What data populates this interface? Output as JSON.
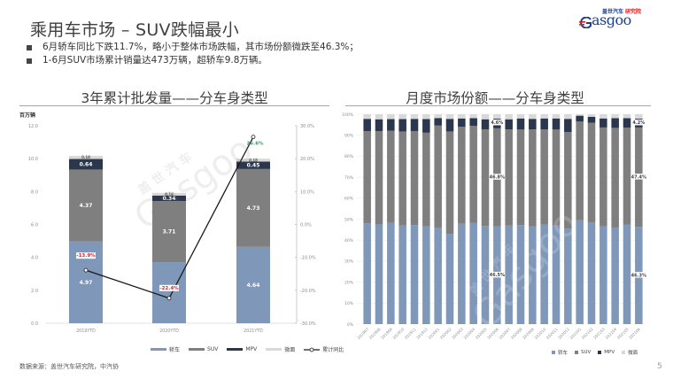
{
  "header": {
    "title": "乘用车市场 – SUV跌幅最小",
    "logo": {
      "top_left": "盖世汽车",
      "top_right": "研究院",
      "word": "asgoo"
    }
  },
  "bullets": [
    "6月轿车同比下跌11.7%，略小于整体市场跌幅，其市场份额微跌至46.3%；",
    "1-6月SUV市场累计销量达473万辆，超轿车9.8万辆。"
  ],
  "colors": {
    "sedan": "#7f97b8",
    "suv": "#7f7f7f",
    "mpv": "#2b374c",
    "crossover": "#d9d9d9",
    "line": "#1a1a1a",
    "negative_label": "#e0202f",
    "positive_label": "#21a366"
  },
  "left_chart": {
    "title": "3年累计批发量——分车身类型",
    "unit": "百万辆"
  },
  "right_chart": {
    "title": "月度市场份额——分车身类型"
  },
  "legend": {
    "sedan": "轿车",
    "suv": "SUV",
    "mpv": "MPV",
    "crossover": "微面",
    "yoy": "累计同比"
  },
  "chart_data": [
    {
      "type": "bar",
      "stacked": true,
      "title": "3年累计批发量——分车身类型",
      "ylabel": "百万辆",
      "ylim": [
        0,
        12
      ],
      "yticks": [
        "0.0",
        "2.0",
        "4.0",
        "6.0",
        "8.0",
        "10.0",
        "12.0"
      ],
      "y2lim": [
        -30,
        30
      ],
      "y2ticks": [
        "-30.0%",
        "-20.0%",
        "-10.0%",
        "0.0%",
        "10.0%",
        "20.0%",
        "30.0%"
      ],
      "categories": [
        "2019YTD",
        "2020YTD",
        "2021YTD"
      ],
      "series": [
        {
          "name": "轿车",
          "values": [
            4.97,
            3.71,
            4.64
          ]
        },
        {
          "name": "SUV",
          "values": [
            4.37,
            3.71,
            4.73
          ]
        },
        {
          "name": "MPV",
          "values": [
            0.64,
            0.34,
            0.45
          ]
        },
        {
          "name": "微面",
          "values": [
            0.19,
            0.16,
            0.18
          ]
        }
      ],
      "line_series": {
        "name": "累计同比",
        "axis": "secondary",
        "values": [
          -13.9,
          -22.4,
          26.6
        ],
        "labels": [
          "-13.9%",
          "-22.4%",
          "26.6%"
        ]
      },
      "value_labels": {
        "sedan": [
          "4.97",
          "",
          "4.64"
        ],
        "suv": [
          "4.37",
          "3.71",
          "4.73"
        ],
        "mpv": [
          "0.64",
          "0.34",
          "0.45"
        ],
        "crossover": [
          "0.19",
          "0.16",
          "0.18"
        ]
      },
      "legend_position": "bottom"
    },
    {
      "type": "bar",
      "stacked": true,
      "percent": true,
      "title": "月度市场份额——分车身类型",
      "ylim": [
        0,
        100
      ],
      "yticks": [
        "0%",
        "10%",
        "20%",
        "30%",
        "40%",
        "50%",
        "60%",
        "70%",
        "80%",
        "90%",
        "100%"
      ],
      "categories": [
        "201907",
        "201908",
        "201909",
        "201910",
        "201911",
        "201912",
        "202001",
        "202002",
        "202003",
        "202004",
        "202005",
        "202006",
        "202007",
        "202008",
        "202009",
        "202010",
        "202011",
        "202012",
        "202101",
        "202102",
        "202103",
        "202104",
        "202105",
        "202106"
      ],
      "series": [
        {
          "name": "轿车",
          "values": [
            48.0,
            47.5,
            48.2,
            47.0,
            47.2,
            46.5,
            46.0,
            43.0,
            47.8,
            48.3,
            46.8,
            46.5,
            47.0,
            47.2,
            46.6,
            47.5,
            47.0,
            45.5,
            49.5,
            48.5,
            46.5,
            46.0,
            47.3,
            46.3
          ]
        },
        {
          "name": "SUV",
          "values": [
            44.0,
            44.5,
            44.0,
            44.8,
            44.8,
            44.7,
            48.6,
            48.8,
            46.2,
            46.2,
            46.0,
            46.8,
            45.8,
            45.5,
            46.2,
            45.3,
            45.7,
            46.0,
            47.0,
            47.4,
            47.2,
            47.5,
            46.3,
            47.4
          ]
        },
        {
          "name": "MPV",
          "values": [
            5.8,
            5.6,
            5.5,
            5.9,
            5.8,
            6.5,
            3.6,
            6.0,
            4.0,
            3.6,
            4.8,
            4.6,
            4.8,
            5.3,
            5.0,
            5.2,
            5.3,
            6.3,
            2.8,
            2.9,
            4.3,
            4.6,
            4.5,
            4.2
          ]
        },
        {
          "name": "微面",
          "values": [
            2.2,
            2.4,
            2.3,
            2.3,
            2.2,
            2.3,
            1.8,
            2.2,
            2.0,
            1.9,
            2.4,
            2.1,
            2.4,
            2.0,
            2.2,
            2.0,
            2.0,
            2.2,
            0.7,
            1.2,
            2.0,
            1.9,
            1.9,
            2.1
          ]
        }
      ],
      "annotations": [
        {
          "category": "202006",
          "series": "MPV",
          "label": "4.6%"
        },
        {
          "category": "202006",
          "series": "SUV",
          "label": "46.8%"
        },
        {
          "category": "202006",
          "series": "轿车",
          "label": "46.5%"
        },
        {
          "category": "202106",
          "series": "MPV",
          "label": "4.2%"
        },
        {
          "category": "202106",
          "series": "SUV",
          "label": "47.4%"
        },
        {
          "category": "202106",
          "series": "轿车",
          "label": "46.3%"
        }
      ],
      "grid": true,
      "legend_position": "bottom-right"
    }
  ],
  "footer": {
    "source": "数据来源：盖世汽车研究院，中汽协",
    "page_number": "5"
  }
}
